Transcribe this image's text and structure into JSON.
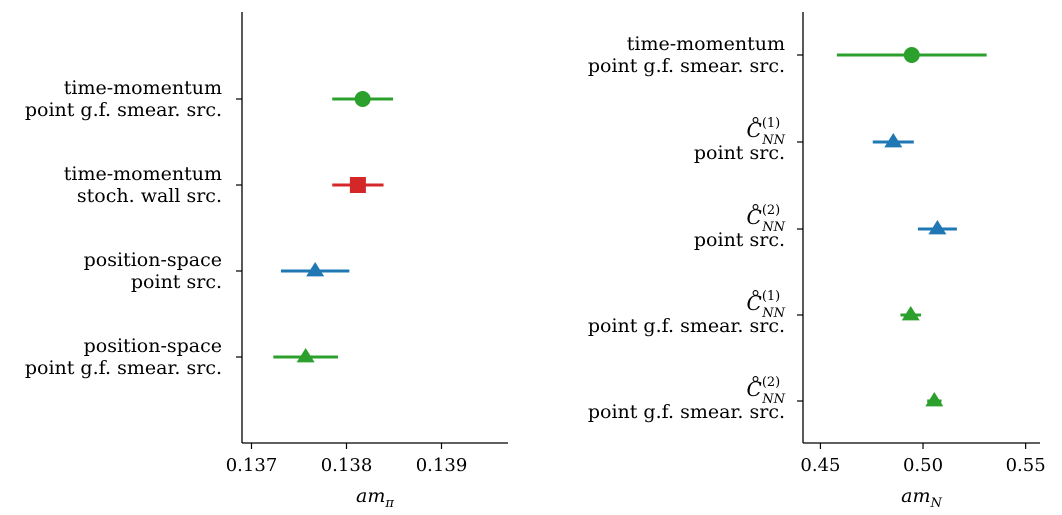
{
  "colors": {
    "green": "#2ca02c",
    "red": "#d62728",
    "blue": "#1f77b4",
    "axis": "#000000"
  },
  "chart_data": [
    {
      "type": "scatter",
      "subtype": "forest-plot-with-horizontal-error-bars",
      "xlabel": {
        "base": "am",
        "sub": "π"
      },
      "xlim": [
        0.1369,
        0.1397
      ],
      "xticks": [
        0.137,
        0.138,
        0.139
      ],
      "xtick_labels": [
        "0.137",
        "0.138",
        "0.139"
      ],
      "categories": [
        {
          "lines": [
            "time-momentum",
            "point g.f. smear. src."
          ]
        },
        {
          "lines": [
            "time-momentum",
            "stoch. wall src."
          ]
        },
        {
          "lines": [
            "position-space",
            "point src."
          ]
        },
        {
          "lines": [
            "position-space",
            "point g.f. smear. src."
          ]
        }
      ],
      "points": [
        {
          "value": 0.13817,
          "err": 0.00032,
          "marker": "circle",
          "color": "#2ca02c"
        },
        {
          "value": 0.13812,
          "err": 0.00027,
          "marker": "square",
          "color": "#d62728"
        },
        {
          "value": 0.13767,
          "err": 0.00036,
          "marker": "triangle",
          "color": "#1f77b4"
        },
        {
          "value": 0.13757,
          "err": 0.00034,
          "marker": "triangle",
          "color": "#2ca02c"
        }
      ]
    },
    {
      "type": "scatter",
      "subtype": "forest-plot-with-horizontal-error-bars",
      "xlabel": {
        "base": "am",
        "sub": "N"
      },
      "xlim": [
        0.4415,
        0.557
      ],
      "xticks": [
        0.45,
        0.5,
        0.55
      ],
      "xtick_labels": [
        "0.45",
        "0.50",
        "0.55"
      ],
      "categories": [
        {
          "lines": [
            "time-momentum",
            "point g.f. smear. src."
          ]
        },
        {
          "math": {
            "base": "C",
            "sup": "(1)",
            "sub": "NN"
          },
          "lines": [
            "point src."
          ]
        },
        {
          "math": {
            "base": "C",
            "sup": "(2)",
            "sub": "NN"
          },
          "lines": [
            "point src."
          ]
        },
        {
          "math": {
            "base": "C",
            "sup": "(1)",
            "sub": "NN"
          },
          "lines": [
            "point g.f. smear. src."
          ]
        },
        {
          "math": {
            "base": "C",
            "sup": "(2)",
            "sub": "NN"
          },
          "lines": [
            "point g.f. smear. src."
          ]
        }
      ],
      "points": [
        {
          "value": 0.4945,
          "err": 0.0365,
          "marker": "circle",
          "color": "#2ca02c"
        },
        {
          "value": 0.4855,
          "err": 0.01,
          "marker": "triangle",
          "color": "#1f77b4"
        },
        {
          "value": 0.507,
          "err": 0.0095,
          "marker": "triangle",
          "color": "#1f77b4"
        },
        {
          "value": 0.494,
          "err": 0.005,
          "marker": "triangle",
          "color": "#2ca02c"
        },
        {
          "value": 0.5055,
          "err": 0.0035,
          "marker": "triangle",
          "color": "#2ca02c"
        }
      ]
    }
  ]
}
